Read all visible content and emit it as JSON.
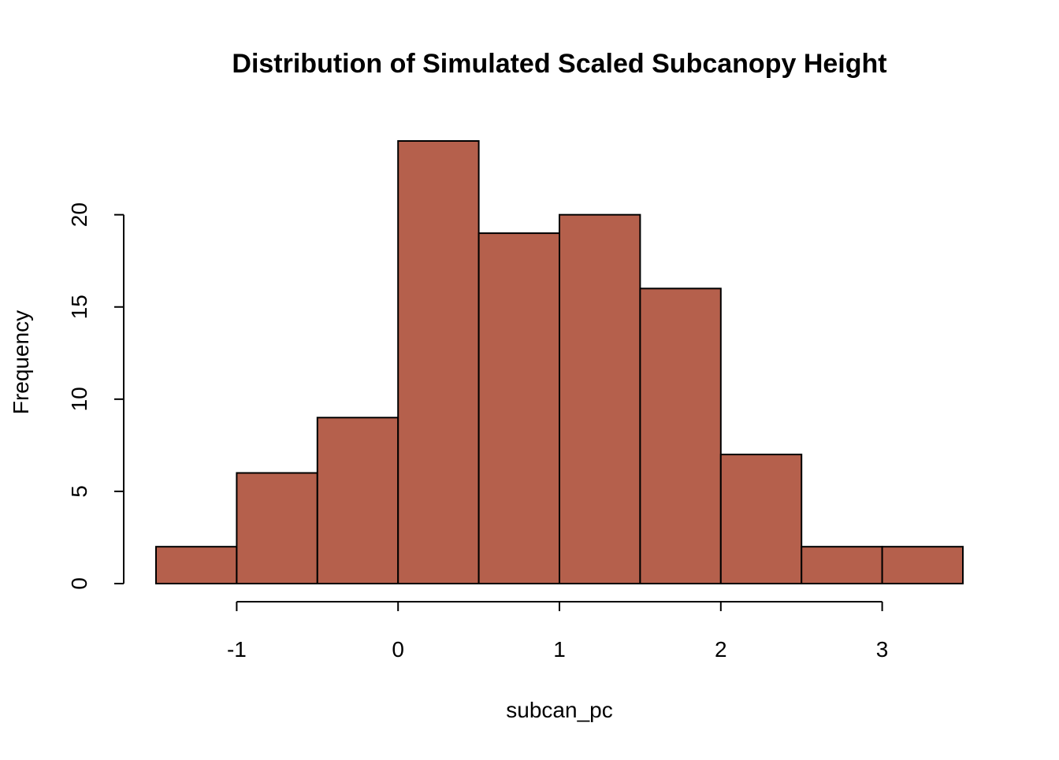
{
  "chart_data": {
    "type": "bar",
    "title": "Distribution of Simulated Scaled Subcanopy Height",
    "xlabel": "subcan_pc",
    "ylabel": "Frequency",
    "bins": [
      {
        "from": -1.5,
        "to": -1.0,
        "count": 2
      },
      {
        "from": -1.0,
        "to": -0.5,
        "count": 6
      },
      {
        "from": -0.5,
        "to": 0.0,
        "count": 9
      },
      {
        "from": 0.0,
        "to": 0.5,
        "count": 24
      },
      {
        "from": 0.5,
        "to": 1.0,
        "count": 19
      },
      {
        "from": 1.0,
        "to": 1.5,
        "count": 20
      },
      {
        "from": 1.5,
        "to": 2.0,
        "count": 16
      },
      {
        "from": 2.0,
        "to": 2.5,
        "count": 7
      },
      {
        "from": 2.5,
        "to": 3.0,
        "count": 2
      },
      {
        "from": 3.0,
        "to": 3.5,
        "count": 2
      }
    ],
    "xlim": [
      -1.5,
      3.5
    ],
    "ylim": [
      0,
      24
    ],
    "x_ticks": [
      {
        "value": -1,
        "label": "-1"
      },
      {
        "value": 0,
        "label": "0"
      },
      {
        "value": 1,
        "label": "1"
      },
      {
        "value": 2,
        "label": "2"
      },
      {
        "value": 3,
        "label": "3"
      }
    ],
    "y_ticks": [
      {
        "value": 0,
        "label": "0"
      },
      {
        "value": 5,
        "label": "5"
      },
      {
        "value": 10,
        "label": "10"
      },
      {
        "value": 15,
        "label": "15"
      },
      {
        "value": 20,
        "label": "20"
      }
    ],
    "bar_color": "#b5604c",
    "bar_border_color": "#000000",
    "grid": false,
    "legend": "none"
  }
}
